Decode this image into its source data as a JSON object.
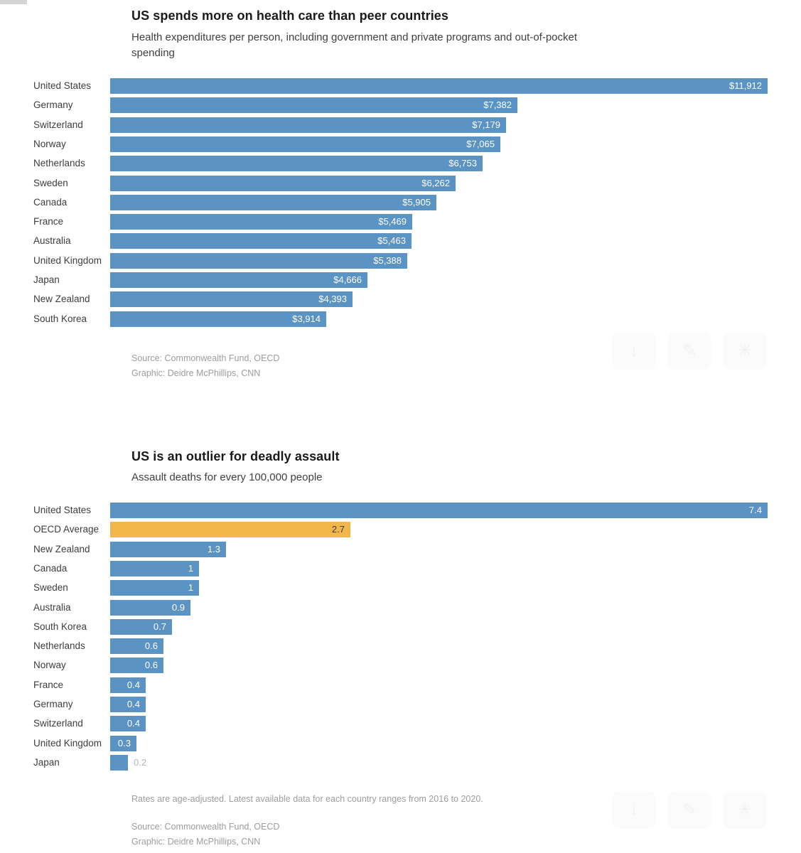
{
  "page": {
    "background_color": "#ffffff",
    "edge_artifact_color": "#d4d4d4"
  },
  "chart_actions": {
    "buttons": [
      {
        "name": "download",
        "glyph": "↓"
      },
      {
        "name": "edit",
        "glyph": "✎"
      },
      {
        "name": "share",
        "glyph": "✳"
      }
    ],
    "background_color": "#fbfbfb",
    "glyph_color": "#f1f1f1"
  },
  "chart_data": [
    {
      "type": "bar",
      "orientation": "horizontal",
      "title": "US spends more on health care than peer countries",
      "subtitle": "Health expenditures per person, including government and private programs and out-of-pocket spending",
      "categories": [
        "United States",
        "Germany",
        "Switzerland",
        "Norway",
        "Netherlands",
        "Sweden",
        "Canada",
        "France",
        "Australia",
        "United Kingdom",
        "Japan",
        "New Zealand",
        "South Korea"
      ],
      "values": [
        11912,
        7382,
        7179,
        7065,
        6753,
        6262,
        5905,
        5469,
        5463,
        5388,
        4666,
        4393,
        3914
      ],
      "value_labels": [
        "$11,912",
        "$7,382",
        "$7,179",
        "$7,065",
        "$6,753",
        "$6,262",
        "$5,905",
        "$5,469",
        "$5,463",
        "$5,388",
        "$4,666",
        "$4,393",
        "$3,914"
      ],
      "xlim": [
        0,
        11912
      ],
      "grid": false,
      "legend": false,
      "bar_color": "#5b94c4",
      "value_label_color": "#ffffff",
      "source": "Source: Commonwealth Fund, OECD",
      "credit": "Graphic: Deidre McPhillips, CNN"
    },
    {
      "type": "bar",
      "orientation": "horizontal",
      "title": "US is an outlier for deadly assault",
      "subtitle": "Assault deaths for every 100,000 people",
      "categories": [
        "United States",
        "OECD Average",
        "New Zealand",
        "Canada",
        "Sweden",
        "Australia",
        "South Korea",
        "Netherlands",
        "Norway",
        "France",
        "Germany",
        "Switzerland",
        "United Kingdom",
        "Japan"
      ],
      "values": [
        7.4,
        2.7,
        1.3,
        1,
        1,
        0.9,
        0.7,
        0.6,
        0.6,
        0.4,
        0.4,
        0.4,
        0.3,
        0.2
      ],
      "value_labels": [
        "7.4",
        "2.7",
        "1.3",
        "1",
        "1",
        "0.9",
        "0.7",
        "0.6",
        "0.6",
        "0.4",
        "0.4",
        "0.4",
        "0.3",
        "0.2"
      ],
      "xlim": [
        0,
        7.4
      ],
      "grid": false,
      "legend": false,
      "bar_color": "#5b94c4",
      "value_label_color": "#ffffff",
      "highlight": {
        "index": 1,
        "category": "OECD Average",
        "bar_color": "#f2b74b",
        "value_label_color": "#3a3a3a"
      },
      "outside_value_label": {
        "index": 13,
        "category": "Japan",
        "color": "#b3b3b3"
      },
      "note": "Rates are age-adjusted. Latest available data for each country ranges from 2016 to 2020.",
      "source": "Source: Commonwealth Fund, OECD",
      "credit": "Graphic: Deidre McPhillips, CNN"
    }
  ]
}
